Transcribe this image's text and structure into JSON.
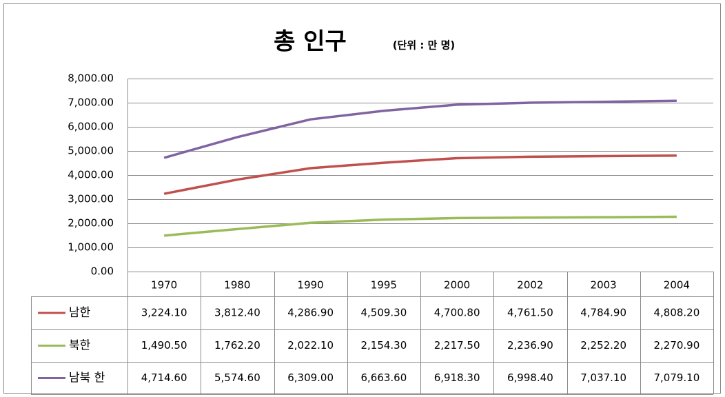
{
  "chart_data": {
    "type": "line",
    "title": "총 인구",
    "subtitle": "(단위 : 만 명)",
    "categories": [
      "1970",
      "1980",
      "1990",
      "1995",
      "2000",
      "2002",
      "2003",
      "2004"
    ],
    "series": [
      {
        "name": "남한",
        "color": "#c0504d",
        "values": [
          3224.1,
          3812.4,
          4286.9,
          4509.3,
          4700.8,
          4761.5,
          4784.9,
          4808.2
        ],
        "value_labels": [
          "3,224.10",
          "3,812.40",
          "4,286.90",
          "4,509.30",
          "4,700.80",
          "4,761.50",
          "4,784.90",
          "4,808.20"
        ]
      },
      {
        "name": "북한",
        "color": "#9bbb59",
        "values": [
          1490.5,
          1762.2,
          2022.1,
          2154.3,
          2217.5,
          2236.9,
          2252.2,
          2270.9
        ],
        "value_labels": [
          "1,490.50",
          "1,762.20",
          "2,022.10",
          "2,154.30",
          "2,217.50",
          "2,236.90",
          "2,252.20",
          "2,270.90"
        ]
      },
      {
        "name": "남북 한",
        "color": "#8064a2",
        "values": [
          4714.6,
          5574.6,
          6309.0,
          6663.6,
          6918.3,
          6998.4,
          7037.1,
          7079.1
        ],
        "value_labels": [
          "4,714.60",
          "5,574.60",
          "6,309.00",
          "6,663.60",
          "6,918.30",
          "6,998.40",
          "7,037.10",
          "7,079.10"
        ]
      }
    ],
    "ylim": [
      0,
      8000
    ],
    "yticks": [
      {
        "value": 0,
        "label": "0.00"
      },
      {
        "value": 1000,
        "label": "1,000.00"
      },
      {
        "value": 2000,
        "label": "2,000.00"
      },
      {
        "value": 3000,
        "label": "3,000.00"
      },
      {
        "value": 4000,
        "label": "4,000.00"
      },
      {
        "value": 5000,
        "label": "5,000.00"
      },
      {
        "value": 6000,
        "label": "6,000.00"
      },
      {
        "value": 7000,
        "label": "7,000.00"
      },
      {
        "value": 8000,
        "label": "8,000.00"
      }
    ],
    "grid": true
  }
}
